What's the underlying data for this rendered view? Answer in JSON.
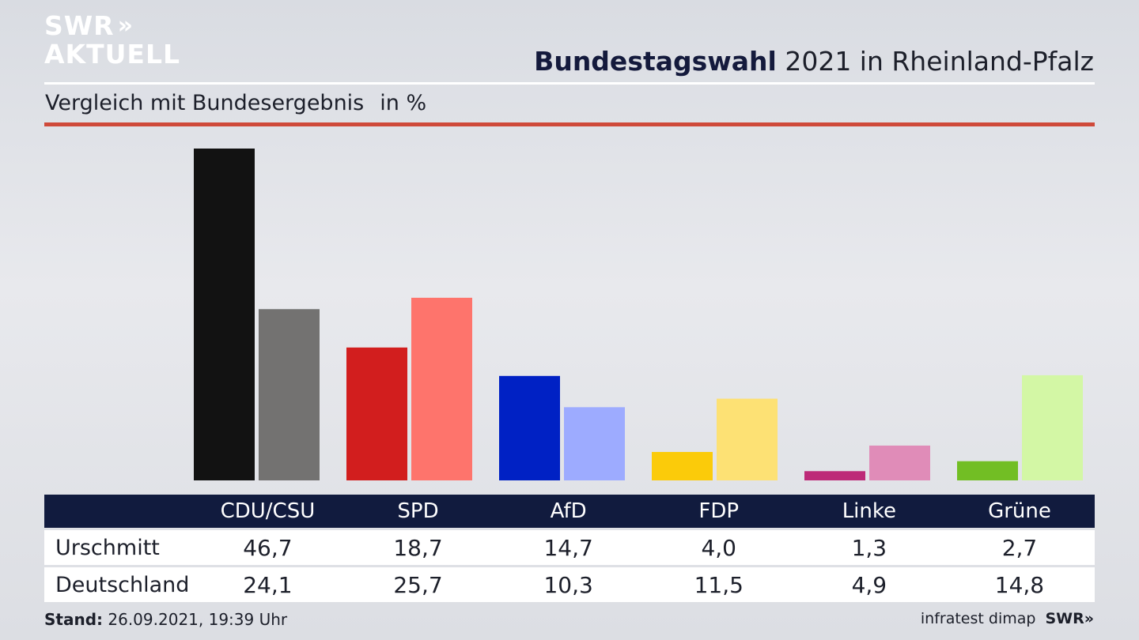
{
  "logo": {
    "line1": "SWR",
    "line2": "AKTUELL"
  },
  "header": {
    "title_bold": "Bundestagswahl",
    "title_rest": "2021 in Rheinland-Pfalz",
    "subtitle": "Vergleich mit Bundesergebnis",
    "unit": "in %"
  },
  "colors": {
    "accent_rule": "#cf4a3a",
    "table_header_bg": "#111b3e"
  },
  "chart_data": {
    "type": "bar",
    "title": "Bundestagswahl 2021 in Rheinland-Pfalz",
    "subtitle": "Vergleich mit Bundesergebnis",
    "ylabel": "in %",
    "categories": [
      "CDU/CSU",
      "SPD",
      "AfD",
      "FDP",
      "Linke",
      "Grüne"
    ],
    "series": [
      {
        "name": "Urschmitt",
        "values": [
          46.7,
          18.7,
          14.7,
          4.0,
          1.3,
          2.7
        ],
        "colors": [
          "#121212",
          "#d21e1e",
          "#0021c4",
          "#fbcb0a",
          "#bd2a78",
          "#72be24"
        ]
      },
      {
        "name": "Deutschland",
        "values": [
          24.1,
          25.7,
          10.3,
          11.5,
          4.9,
          14.8
        ],
        "colors": [
          "#737271",
          "#fe746c",
          "#9dabff",
          "#fde174",
          "#e08cb8",
          "#d3f7a5"
        ]
      }
    ],
    "ylim": [
      0,
      46.7
    ],
    "grid": false,
    "legend": "table-below"
  },
  "table": {
    "headers": [
      "CDU/CSU",
      "SPD",
      "AfD",
      "FDP",
      "Linke",
      "Grüne"
    ],
    "rows": [
      {
        "label": "Urschmitt",
        "values": [
          "46,7",
          "18,7",
          "14,7",
          "4,0",
          "1,3",
          "2,7"
        ]
      },
      {
        "label": "Deutschland",
        "values": [
          "24,1",
          "25,7",
          "10,3",
          "11,5",
          "4,9",
          "14,8"
        ]
      }
    ]
  },
  "footer": {
    "stand_label": "Stand:",
    "stand_value": "26.09.2021, 19:39 Uhr",
    "source": "infratest dimap",
    "brand": "SWR"
  }
}
